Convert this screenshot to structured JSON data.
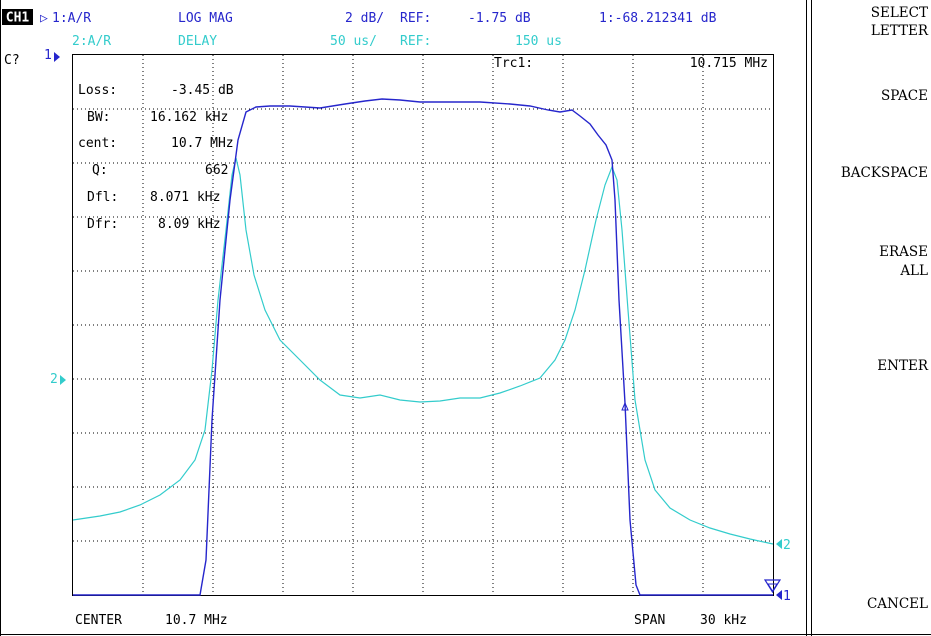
{
  "channel": "CH1",
  "trace1": {
    "marker_glyph": "▷",
    "id": "1:A/R",
    "format": "LOG MAG",
    "scale": "2 dB/",
    "ref_label": "REF:",
    "ref_value": "-1.75 dB",
    "marker_readout": "1:-68.212341 dB",
    "color": "#2626cc"
  },
  "trace2": {
    "id": "2:A/R",
    "format": "DELAY",
    "scale": "50 us/",
    "ref_label": "REF:",
    "ref_value": "150 us",
    "color": "#33cccc"
  },
  "cal_status": "C?",
  "marker_header": {
    "label": "Trc1:",
    "value": "10.715 MHz"
  },
  "filter_stats": [
    {
      "key": "Loss:",
      "value": "-3.45 dB"
    },
    {
      "key": "BW:",
      "value": "16.162 kHz"
    },
    {
      "key": "cent:",
      "value": "10.7 MHz"
    },
    {
      "key": "Q:",
      "value": "662"
    },
    {
      "key": "Dfl:",
      "value": "8.071 kHz"
    },
    {
      "key": "Dfr:",
      "value": "8.09 kHz"
    }
  ],
  "ref_markers": {
    "trace1": "1",
    "trace2": "2"
  },
  "bottom": {
    "center_label": "CENTER",
    "center_value": "10.7 MHz",
    "span_label": "SPAN",
    "span_value": "30 kHz"
  },
  "softkeys": [
    {
      "lines": [
        "SELECT",
        "LETTER"
      ]
    },
    {
      "lines": [
        "SPACE"
      ]
    },
    {
      "lines": [
        "BACKSPACE"
      ]
    },
    {
      "lines": [
        "ERASE",
        "ALL"
      ]
    },
    {
      "lines": [
        "ENTER"
      ]
    },
    {
      "lines": [
        "CANCEL"
      ]
    }
  ]
}
